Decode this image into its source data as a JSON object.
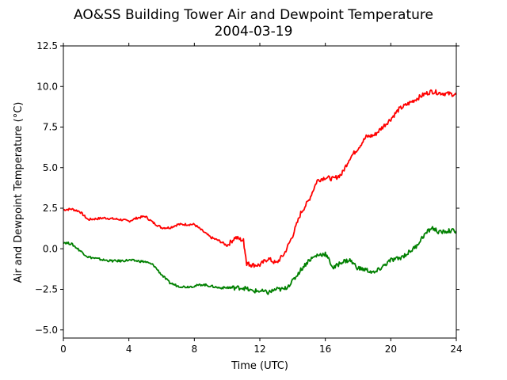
{
  "chart_data": {
    "type": "line",
    "title": "AO&SS Building Tower Air and Dewpoint Temperature",
    "subtitle": "2004-03-19",
    "xlabel": "Time (UTC)",
    "ylabel": "Air and Dewpoint Temperature (°C)",
    "xlim": [
      0,
      24
    ],
    "ylim": [
      -5.5,
      12.5
    ],
    "xticks": [
      0,
      4,
      8,
      12,
      16,
      20,
      24
    ],
    "xtick_labels": [
      "0",
      "4",
      "8",
      "12",
      "16",
      "20",
      "24"
    ],
    "yticks": [
      12.5,
      10.0,
      7.5,
      5.0,
      2.5,
      0.0,
      -2.5,
      -5.0
    ],
    "ytick_labels": [
      "12.5",
      "10.0",
      "7.5",
      "5.0",
      "2.5",
      "0.0",
      "−2.5",
      "−5.0"
    ],
    "grid": false,
    "series": [
      {
        "color": "#ff0000",
        "x": [
          0,
          0.5,
          1,
          1.5,
          2,
          2.5,
          3,
          3.5,
          4,
          4.5,
          5,
          5.5,
          6,
          6.5,
          7,
          7.5,
          8,
          8.5,
          9,
          9.5,
          10,
          10.5,
          11,
          11.2,
          11.5,
          12,
          12.5,
          13,
          13.5,
          14,
          14.5,
          15,
          15.5,
          16,
          16.5,
          17,
          17.5,
          18,
          18.5,
          19,
          19.5,
          20,
          20.5,
          21,
          21.5,
          22,
          22.5,
          23,
          23.5,
          24
        ],
        "y": [
          2.4,
          2.45,
          2.3,
          1.8,
          1.85,
          1.9,
          1.85,
          1.8,
          1.7,
          1.9,
          2.0,
          1.6,
          1.3,
          1.3,
          1.5,
          1.5,
          1.5,
          1.1,
          0.7,
          0.5,
          0.2,
          0.7,
          0.5,
          -0.9,
          -1.0,
          -1.0,
          -0.6,
          -0.9,
          -0.3,
          0.8,
          2.2,
          3.0,
          4.2,
          4.4,
          4.3,
          4.6,
          5.6,
          6.2,
          6.9,
          7.0,
          7.5,
          8.0,
          8.6,
          8.9,
          9.2,
          9.5,
          9.7,
          9.6,
          9.55,
          9.5
        ]
      },
      {
        "color": "#008000",
        "x": [
          0,
          0.5,
          1,
          1.5,
          2,
          2.5,
          3,
          3.5,
          4,
          4.5,
          5,
          5.5,
          6,
          6.5,
          7,
          7.5,
          8,
          8.5,
          9,
          9.5,
          10,
          10.5,
          11,
          11.5,
          12,
          12.5,
          13,
          13.5,
          14,
          14.5,
          15,
          15.5,
          16,
          16.5,
          17,
          17.5,
          18,
          18.5,
          19,
          19.5,
          20,
          20.5,
          21,
          21.5,
          22,
          22.5,
          23,
          23.5,
          24
        ],
        "y": [
          0.4,
          0.3,
          -0.1,
          -0.5,
          -0.6,
          -0.7,
          -0.75,
          -0.75,
          -0.7,
          -0.75,
          -0.8,
          -1.0,
          -1.6,
          -2.1,
          -2.3,
          -2.35,
          -2.3,
          -2.2,
          -2.3,
          -2.4,
          -2.4,
          -2.4,
          -2.4,
          -2.6,
          -2.6,
          -2.7,
          -2.5,
          -2.5,
          -2.0,
          -1.3,
          -0.7,
          -0.4,
          -0.3,
          -1.2,
          -0.8,
          -0.7,
          -1.2,
          -1.3,
          -1.5,
          -1.1,
          -0.7,
          -0.6,
          -0.3,
          0.1,
          0.8,
          1.3,
          1.0,
          1.1,
          1.1
        ]
      }
    ]
  }
}
